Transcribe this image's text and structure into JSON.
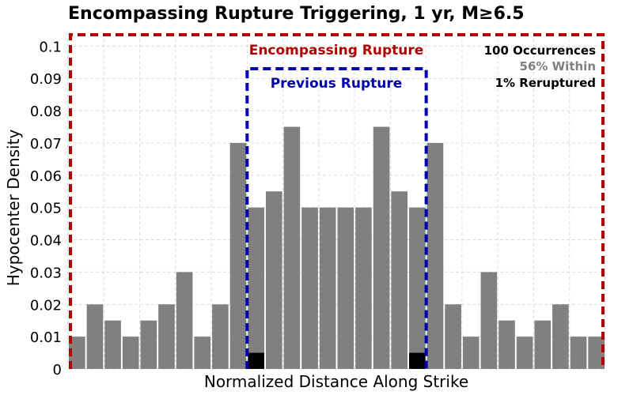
{
  "chart_data": {
    "type": "bar",
    "title": "Encompassing Rupture Triggering, 1 yr, M≥6.5",
    "xlabel": "Normalized Distance Along Strike",
    "ylabel": "Hypocenter Density",
    "ylim": [
      0,
      0.104
    ],
    "yticks": [
      "0",
      "0.01",
      "0.02",
      "0.03",
      "0.04",
      "0.05",
      "0.06",
      "0.07",
      "0.08",
      "0.09",
      "0.1"
    ],
    "grid": true,
    "bins": 30,
    "values": [
      0.01,
      0.02,
      0.015,
      0.01,
      0.015,
      0.02,
      0.03,
      0.01,
      0.02,
      0.07,
      0.05,
      0.055,
      0.075,
      0.05,
      0.05,
      0.05,
      0.05,
      0.075,
      0.055,
      0.05,
      0.07,
      0.02,
      0.01,
      0.03,
      0.015,
      0.01,
      0.015,
      0.02,
      0.01,
      0.01
    ],
    "rerupture_bins": [
      10,
      19
    ],
    "rerupture_value": 0.005,
    "colors": {
      "bar": "#808080",
      "rerupture_bar": "#000000",
      "encompassing": "#b00000",
      "previous": "#0000a8",
      "within_text": "#808080"
    },
    "regions": {
      "encompassing": {
        "label": "Encompassing Rupture",
        "start_bin": 0,
        "end_bin": 30,
        "top": 0.104
      },
      "previous": {
        "label": "Previous Rupture",
        "start_bin": 10,
        "end_bin": 20,
        "top": 0.093
      }
    },
    "annotations": {
      "occurrences": "100 Occurrences",
      "within": "56% Within",
      "reruptured": "1% Reruptured"
    }
  }
}
